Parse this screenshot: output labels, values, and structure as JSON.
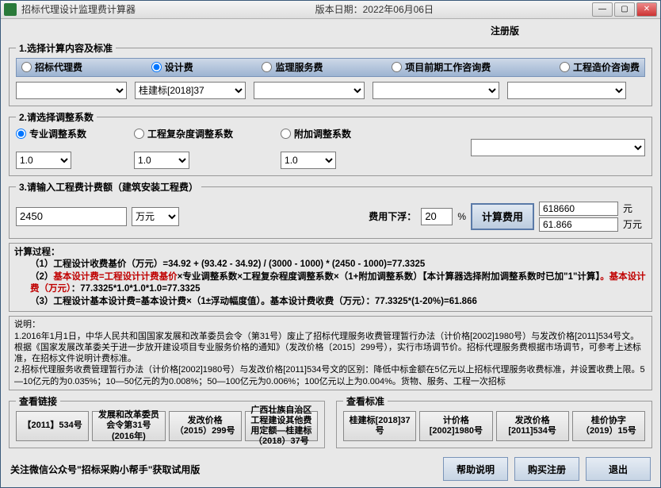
{
  "window": {
    "title": "招标代理设计监理费计算器",
    "version_label": "版本日期：2022年06月06日",
    "registration_label": "注册版"
  },
  "section1": {
    "legend": "1.选择计算内容及标准",
    "radios": [
      "招标代理费",
      "设计费",
      "监理服务费",
      "项目前期工作咨询费",
      "工程造价咨询费"
    ],
    "selected": 1,
    "selects": {
      "s2_value": "桂建标[2018]37"
    }
  },
  "section2": {
    "legend": "2.请选择调整系数",
    "radios": [
      "专业调整系数",
      "工程复杂度调整系数",
      "附加调整系数"
    ],
    "selected": 0,
    "values": [
      "1.0",
      "1.0",
      "1.0"
    ]
  },
  "section3": {
    "legend": "3.请输入工程费计费额（建筑安装工程费）",
    "amount": "2450",
    "unit": "万元",
    "discount_label": "费用下浮：",
    "discount": "20",
    "percent": "%",
    "calc_btn": "计算费用",
    "result1": "618660",
    "result1_unit": "元",
    "result2": "61.866",
    "result2_unit": "万元"
  },
  "process": {
    "title": "计算过程：",
    "lines": [
      "（1）工程设计收费基价（万元）=34.92 + (93.42 - 34.92) / (3000 - 1000) * (2450 - 1000)=77.3325",
      "（2）基本设计费=工程设计计费基价×专业调整系数×工程复杂程度调整系数×（1+附加调整系数）【本计算器选择附加调整系数时已加\"1\"计算】。基本设计费（万元）：77.3325*1.0*1.0*1.0=77.3325",
      "（3）工程设计基本设计费=基本设计费×（1±浮动幅度值）。基本设计费收费（万元）：77.3325*(1-20%)=61.866"
    ]
  },
  "note": {
    "title": "说明：",
    "lines": [
      "1.2016年1月1日，中华人民共和国国家发展和改革委员会令（第31号）废止了招标代理服务收费管理暂行办法（计价格[2002]1980号）与发改价格[2011]534号文。根据《国家发展改革委关于进一步放开建设项目专业服务价格的通知》（发改价格〔2015〕299号），实行市场调节价。招标代理服务费根据市场调节，可参考上述标准，在招标文件说明计费标准。",
      "2.招标代理服务收费管理暂行办法（计价格[2002]1980号）与发改价格[2011]534号文的区别：降低中标金额在5亿元以上招标代理服务收费标准，并设置收费上限。5—10亿元的为0.035%；10—50亿元的为0.008%；50—100亿元为0.006%；100亿元以上为0.004%。货物、服务、工程一次招标"
    ]
  },
  "links": {
    "legend": "查看链接",
    "buttons": [
      "【2011】534号",
      "发展和改革委员会令第31号(2016年)",
      "发改价格（2015）299号",
      "广西壮族自治区工程建设其他费用定额—桂建标（2018）37号"
    ]
  },
  "standards": {
    "legend": "查看标准",
    "buttons": [
      "桂建标[2018]37号",
      "计价格[2002]1980号",
      "发改价格[2011]534号",
      "桂价协字（2019）15号"
    ]
  },
  "footer": {
    "text": "关注微信公众号\"招标采购小帮手\"获取试用版",
    "buttons": [
      "帮助说明",
      "购买注册",
      "退出"
    ]
  },
  "colors": {
    "titlebar_bg_top": "#f5f5f5",
    "titlebar_bg_bottom": "#dedede",
    "panel_bg": "#e8e8e8",
    "radio_bar_top": "#cdd8e8",
    "radio_bar_bottom": "#9db4d2",
    "border": "#999999",
    "accent_border": "#5a7aa8",
    "close_btn": "#cc3333",
    "red_text": "#c00000"
  }
}
